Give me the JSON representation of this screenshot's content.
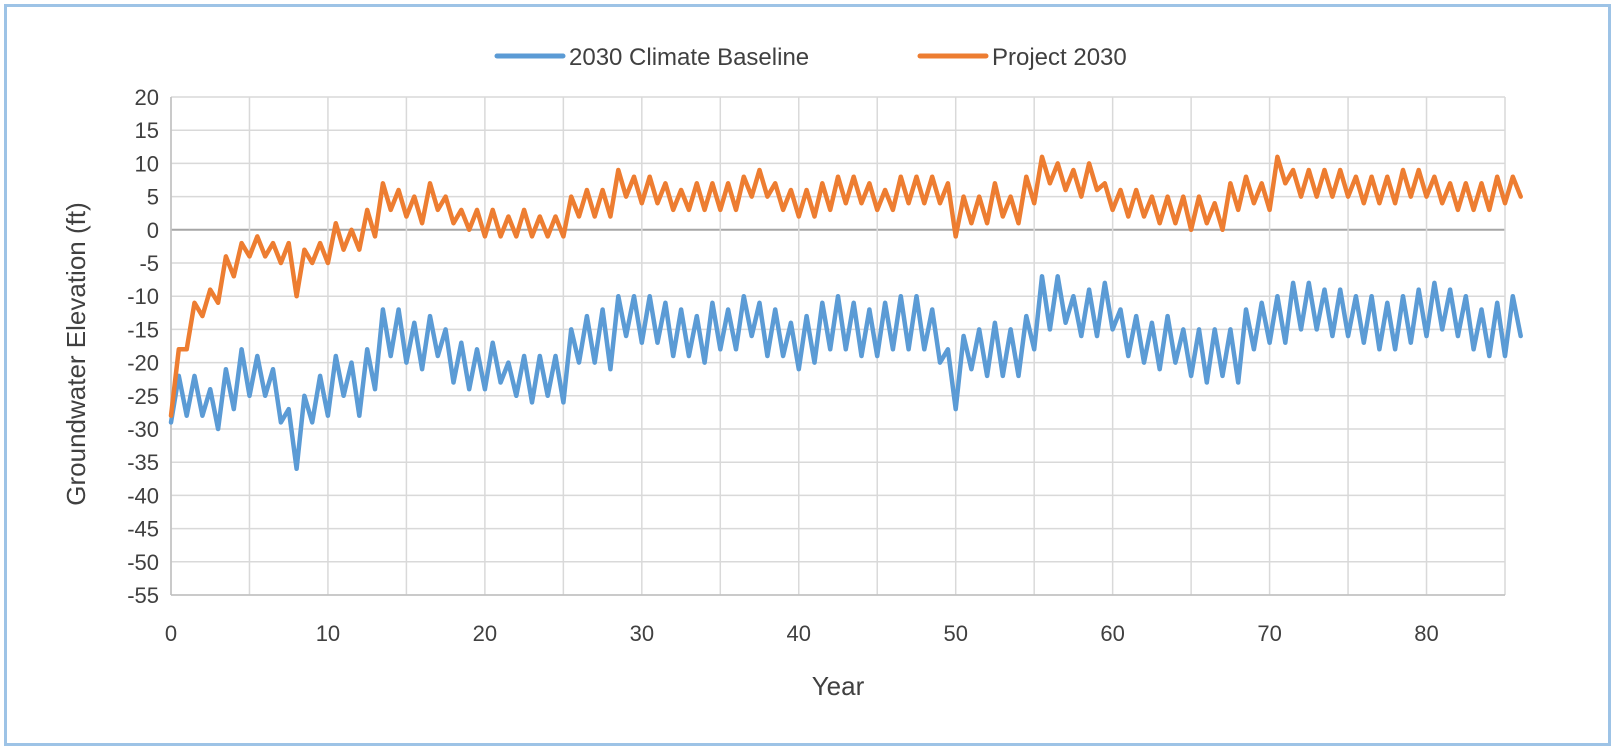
{
  "chart_data": {
    "type": "line",
    "xlabel": "Year",
    "ylabel": "Groundwater Elevation (ft)",
    "xlim": [
      0,
      85
    ],
    "ylim": [
      -55,
      20
    ],
    "x_ticks": [
      "0",
      "10",
      "20",
      "30",
      "40",
      "50",
      "60",
      "70",
      "80"
    ],
    "y_ticks": [
      "20",
      "15",
      "10",
      "5",
      "0",
      "-5",
      "-10",
      "-15",
      "-20",
      "-25",
      "-30",
      "-35",
      "-40",
      "-45",
      "-50",
      "-55"
    ],
    "grid": true,
    "legend_position": "top",
    "x_step": 0.5,
    "series": [
      {
        "name": "2030 Climate Baseline",
        "color": "#5b9bd5",
        "values": [
          -29,
          -22,
          -28,
          -22,
          -28,
          -24,
          -30,
          -21,
          -27,
          -18,
          -25,
          -19,
          -25,
          -21,
          -29,
          -27,
          -36,
          -25,
          -29,
          -22,
          -28,
          -19,
          -25,
          -20,
          -28,
          -18,
          -24,
          -12,
          -19,
          -12,
          -20,
          -14,
          -21,
          -13,
          -19,
          -15,
          -23,
          -17,
          -24,
          -18,
          -24,
          -17,
          -23,
          -20,
          -25,
          -19,
          -26,
          -19,
          -25,
          -19,
          -26,
          -15,
          -20,
          -13,
          -20,
          -12,
          -21,
          -10,
          -16,
          -10,
          -17,
          -10,
          -17,
          -11,
          -19,
          -12,
          -19,
          -13,
          -20,
          -11,
          -18,
          -12,
          -18,
          -10,
          -16,
          -11,
          -19,
          -12,
          -19,
          -14,
          -21,
          -13,
          -20,
          -11,
          -18,
          -10,
          -18,
          -11,
          -19,
          -12,
          -19,
          -11,
          -18,
          -10,
          -18,
          -10,
          -18,
          -12,
          -20,
          -18,
          -27,
          -16,
          -21,
          -15,
          -22,
          -14,
          -22,
          -15,
          -22,
          -13,
          -18,
          -7,
          -15,
          -7,
          -14,
          -10,
          -16,
          -9,
          -16,
          -8,
          -15,
          -12,
          -19,
          -13,
          -20,
          -14,
          -21,
          -13,
          -20,
          -15,
          -22,
          -15,
          -23,
          -15,
          -22,
          -15,
          -23,
          -12,
          -18,
          -11,
          -17,
          -10,
          -17,
          -8,
          -15,
          -8,
          -15,
          -9,
          -16,
          -9,
          -16,
          -10,
          -17,
          -10,
          -18,
          -11,
          -18,
          -10,
          -17,
          -9,
          -16,
          -8,
          -15,
          -9,
          -16,
          -10,
          -18,
          -12,
          -19,
          -11,
          -19,
          -10,
          -16
        ]
      },
      {
        "name": "Project 2030",
        "color": "#ed7d31",
        "values": [
          -28,
          -18,
          -18,
          -11,
          -13,
          -9,
          -11,
          -4,
          -7,
          -2,
          -4,
          -1,
          -4,
          -2,
          -5,
          -2,
          -10,
          -3,
          -5,
          -2,
          -5,
          1,
          -3,
          0,
          -3,
          3,
          -1,
          7,
          3,
          6,
          2,
          5,
          1,
          7,
          3,
          5,
          1,
          3,
          0,
          3,
          -1,
          3,
          -1,
          2,
          -1,
          3,
          -1,
          2,
          -1,
          2,
          -1,
          5,
          2,
          6,
          2,
          6,
          2,
          9,
          5,
          8,
          4,
          8,
          4,
          7,
          3,
          6,
          3,
          7,
          3,
          7,
          3,
          7,
          3,
          8,
          5,
          9,
          5,
          7,
          3,
          6,
          2,
          6,
          2,
          7,
          3,
          8,
          4,
          8,
          4,
          7,
          3,
          6,
          3,
          8,
          4,
          8,
          4,
          8,
          4,
          7,
          -1,
          5,
          1,
          5,
          1,
          7,
          2,
          5,
          1,
          8,
          4,
          11,
          7,
          10,
          6,
          9,
          5,
          10,
          6,
          7,
          3,
          6,
          2,
          6,
          2,
          5,
          1,
          5,
          1,
          5,
          0,
          5,
          1,
          4,
          0,
          7,
          3,
          8,
          4,
          7,
          3,
          11,
          7,
          9,
          5,
          9,
          5,
          9,
          5,
          9,
          5,
          8,
          4,
          8,
          4,
          8,
          4,
          9,
          5,
          9,
          5,
          8,
          4,
          7,
          3,
          7,
          3,
          7,
          3,
          8,
          4,
          8,
          5
        ]
      }
    ]
  }
}
